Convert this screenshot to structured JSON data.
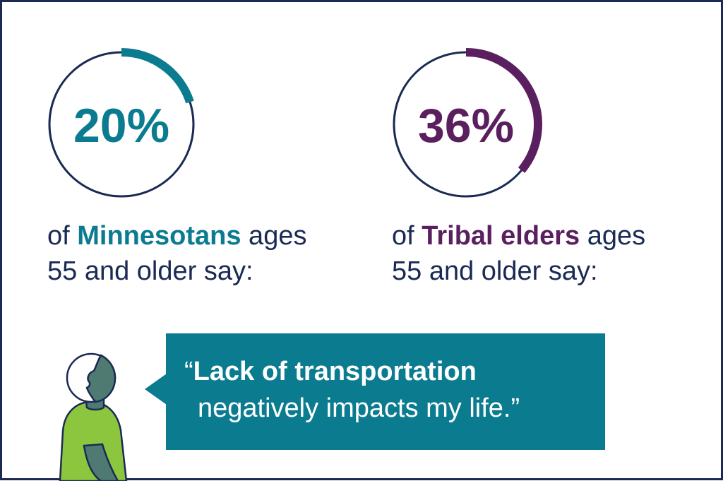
{
  "chart_data": [
    {
      "type": "pie",
      "percent": 20,
      "value_label": "20%",
      "caption_pre": "of ",
      "caption_bold": "Minnesotans",
      "caption_post": " ages",
      "caption_line2": "55 and older say:",
      "color": "#0b7b90"
    },
    {
      "type": "pie",
      "percent": 36,
      "value_label": "36%",
      "caption_pre": "of ",
      "caption_bold": "Tribal elders",
      "caption_post": " ages",
      "caption_line2": "55 and older say:",
      "color": "#5a1f5f"
    }
  ],
  "quote": {
    "open": "“",
    "bold": "Lack of transportation",
    "line2": "negatively impacts my life.”"
  },
  "colors": {
    "ring_outline": "#1b2a54",
    "text_navy": "#1b2a54",
    "bubble": "#0b7b90",
    "shirt": "#8cc63f",
    "skin": "#4f7a72"
  },
  "icons": {
    "person": "person-speaking-icon"
  }
}
